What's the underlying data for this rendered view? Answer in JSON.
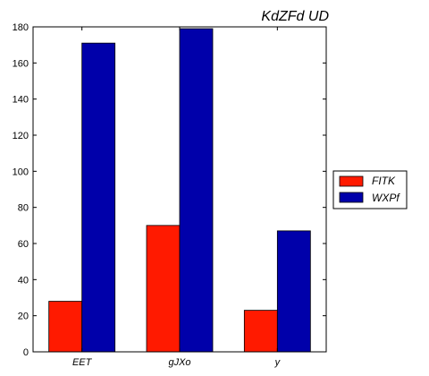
{
  "chart_data": {
    "type": "bar",
    "title": "KdZFd UD",
    "xlabel": "",
    "ylabel": "",
    "categories": [
      "EET",
      "gJXo",
      "y"
    ],
    "series": [
      {
        "name": "FITK",
        "color": "#ff1a00",
        "values": [
          28,
          70,
          23
        ]
      },
      {
        "name": "WXPf",
        "color": "#0000aa",
        "values": [
          171,
          179,
          67
        ]
      }
    ],
    "ylim": [
      0,
      180
    ],
    "yticks": [
      0,
      20,
      40,
      60,
      80,
      100,
      120,
      140,
      160,
      180
    ],
    "grid": false,
    "legend_position": "right"
  }
}
